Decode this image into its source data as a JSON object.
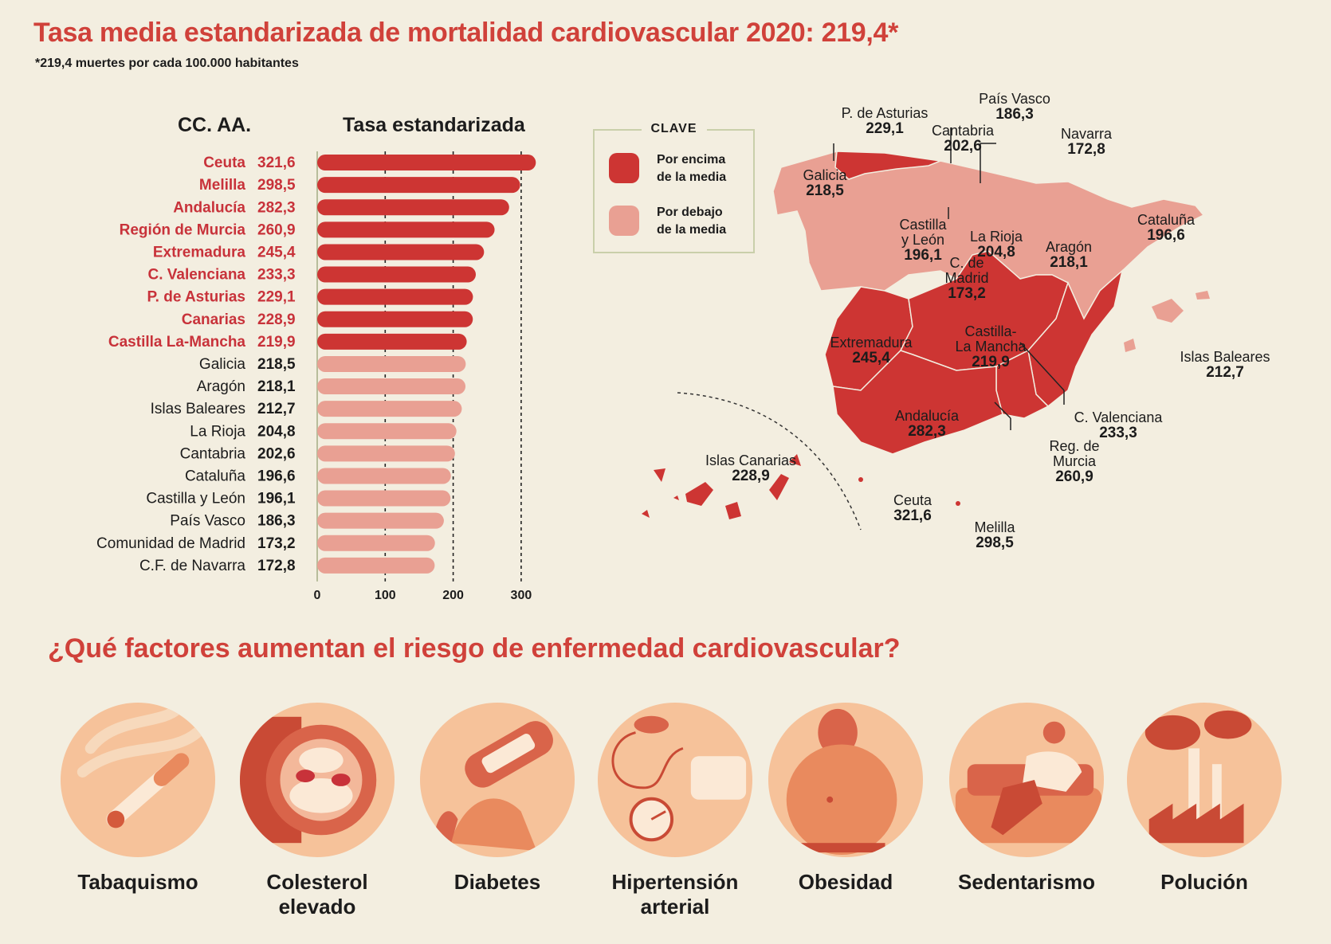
{
  "header": {
    "title": "Tasa media estandarizada de mortalidad cardiovascular 2020: 219,4*",
    "subtitle": "*219,4 muertes por cada 100.000 habitantes"
  },
  "chart_data": {
    "type": "bar",
    "orientation": "horizontal",
    "column_headers": {
      "region": "CC. AA.",
      "value": "Tasa estandarizada"
    },
    "average": 219.4,
    "xlim": [
      0,
      320
    ],
    "xticks": [
      "0",
      "100",
      "200",
      "300"
    ],
    "grid": true,
    "colors": {
      "above": "#cd3533",
      "below": "#e9a093",
      "above_text": "#c8323a"
    },
    "categories": [
      "Ceuta",
      "Melilla",
      "Andalucía",
      "Región de Murcia",
      "Extremadura",
      "C. Valenciana",
      "P. de Asturias",
      "Canarias",
      "Castilla La-Mancha",
      "Galicia",
      "Aragón",
      "Islas Baleares",
      "La Rioja",
      "Cantabria",
      "Cataluña",
      "Castilla y León",
      "País Vasco",
      "Comunidad de Madrid",
      "C.F. de Navarra"
    ],
    "values": [
      321.6,
      298.5,
      282.3,
      260.9,
      245.4,
      233.3,
      229.1,
      228.9,
      219.9,
      218.5,
      218.1,
      212.7,
      204.8,
      202.6,
      196.6,
      196.1,
      186.3,
      173.2,
      172.8
    ],
    "value_labels": [
      "321,6",
      "298,5",
      "282,3",
      "260,9",
      "245,4",
      "233,3",
      "229,1",
      "228,9",
      "219,9",
      "218,5",
      "218,1",
      "212,7",
      "204,8",
      "202,6",
      "196,6",
      "196,1",
      "186,3",
      "173,2",
      "172,8"
    ]
  },
  "legend": {
    "title": "CLAVE",
    "above": "Por encima\nde la media",
    "below": "Por debajo\nde la media"
  },
  "map": {
    "labels": [
      {
        "name": "P. de Asturias",
        "value": "229,1"
      },
      {
        "name": "País Vasco",
        "value": "186,3"
      },
      {
        "name": "Cantabria",
        "value": "202,6"
      },
      {
        "name": "Navarra",
        "value": "172,8"
      },
      {
        "name": "Galicia",
        "value": "218,5"
      },
      {
        "name": "Castilla\ny León",
        "value": "196,1"
      },
      {
        "name": "La Rioja",
        "value": "204,8"
      },
      {
        "name": "Aragón",
        "value": "218,1"
      },
      {
        "name": "Cataluña",
        "value": "196,6"
      },
      {
        "name": "C. de\nMadrid",
        "value": "173,2"
      },
      {
        "name": "Extremadura",
        "value": "245,4"
      },
      {
        "name": "Castilla-\nLa Mancha",
        "value": "219,9"
      },
      {
        "name": "Islas Baleares",
        "value": "212,7"
      },
      {
        "name": "Andalucía",
        "value": "282,3"
      },
      {
        "name": "C. Valenciana",
        "value": "233,3"
      },
      {
        "name": "Reg. de\nMurcia",
        "value": "260,9"
      },
      {
        "name": "Islas Canarias",
        "value": "228,9"
      },
      {
        "name": "Ceuta",
        "value": "321,6"
      },
      {
        "name": "Melilla",
        "value": "298,5"
      }
    ]
  },
  "risk": {
    "title": "¿Qué factores aumentan el riesgo de enfermedad cardiovascular?",
    "factors": [
      {
        "label": "Tabaquismo",
        "icon": "cigarette-icon"
      },
      {
        "label": "Colesterol\nelevado",
        "icon": "artery-icon"
      },
      {
        "label": "Diabetes",
        "icon": "glucometer-icon"
      },
      {
        "label": "Hipertensión\narterial",
        "icon": "blood-pressure-icon"
      },
      {
        "label": "Obesidad",
        "icon": "obesity-icon"
      },
      {
        "label": "Sedentarismo",
        "icon": "couch-icon"
      },
      {
        "label": "Polución",
        "icon": "factory-icon"
      }
    ]
  }
}
